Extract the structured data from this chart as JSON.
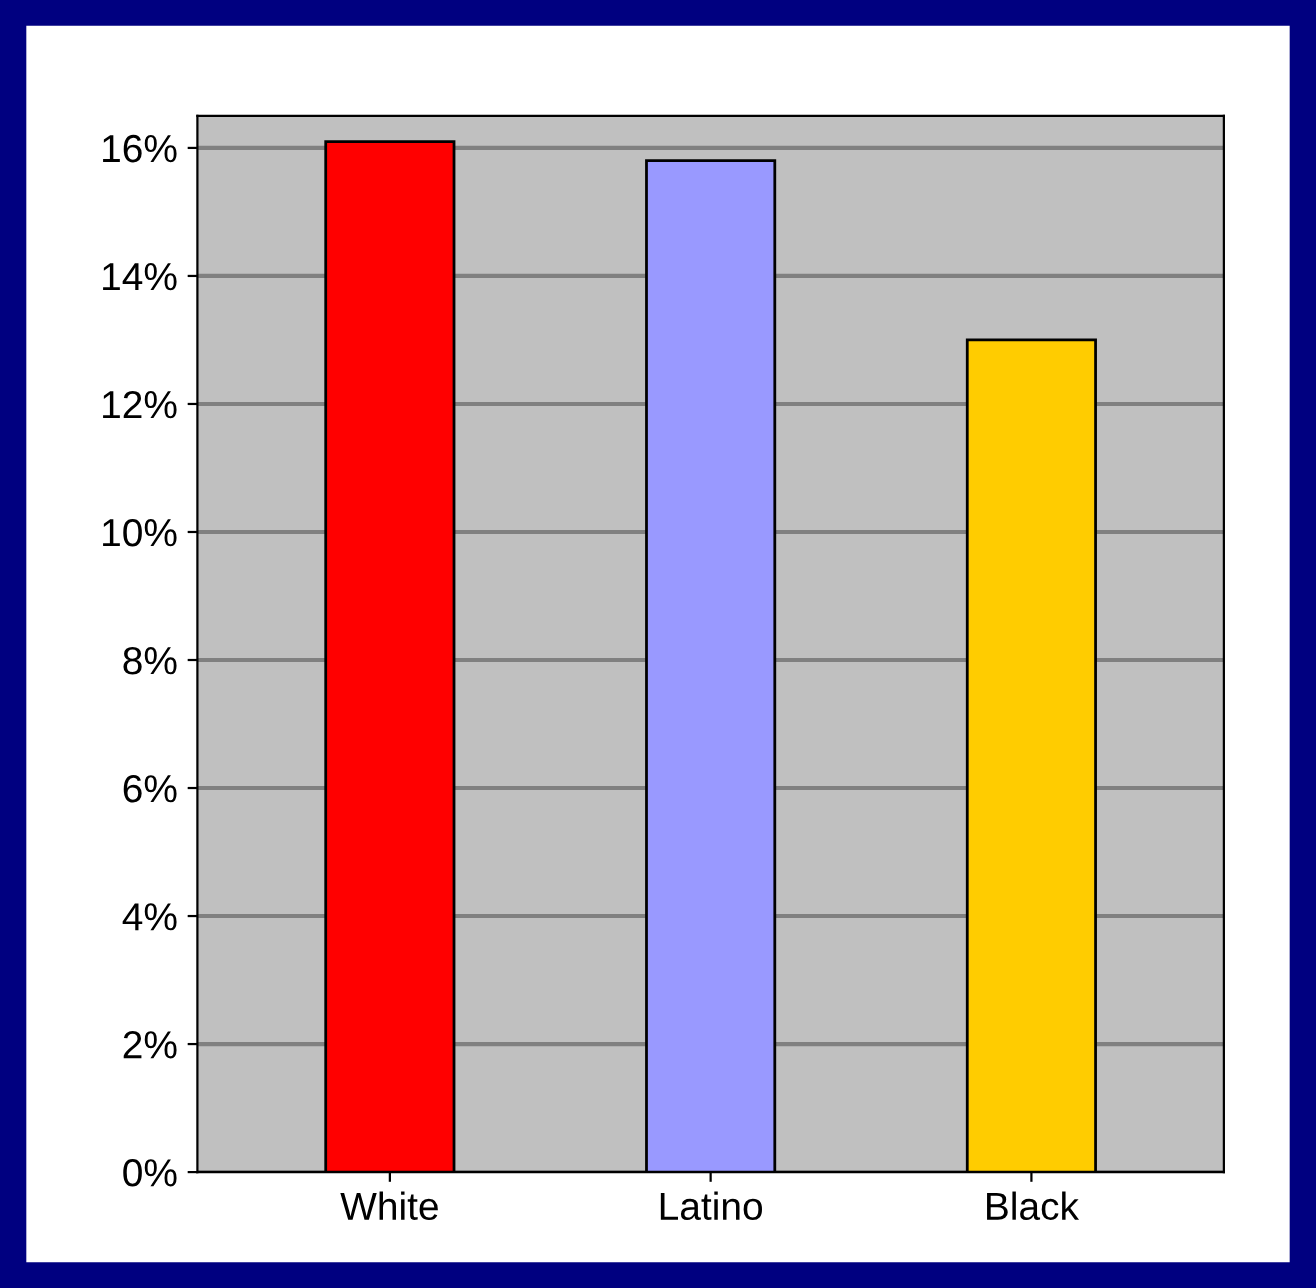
{
  "chart_data": {
    "type": "bar",
    "categories": [
      "White",
      "Latino",
      "Black"
    ],
    "values": [
      16.1,
      15.8,
      13.0
    ],
    "colors": [
      "#ff0000",
      "#9999ff",
      "#ffcc00"
    ],
    "ylim": [
      0,
      16.5
    ],
    "yticks": [
      {
        "value": 0,
        "label": "0%"
      },
      {
        "value": 2,
        "label": "2%"
      },
      {
        "value": 4,
        "label": "4%"
      },
      {
        "value": 6,
        "label": "6%"
      },
      {
        "value": 8,
        "label": "8%"
      },
      {
        "value": 10,
        "label": "10%"
      },
      {
        "value": 12,
        "label": "12%"
      },
      {
        "value": 14,
        "label": "14%"
      },
      {
        "value": 16,
        "label": "16%"
      }
    ],
    "grid": "y",
    "legend": false
  }
}
